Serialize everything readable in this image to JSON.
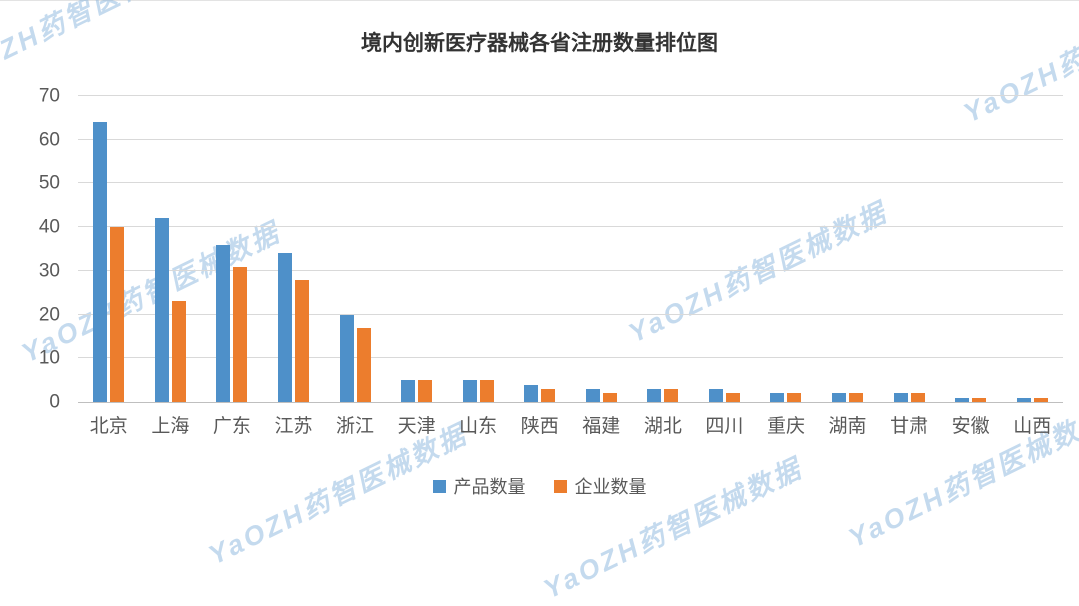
{
  "watermark": {
    "text": "YaOZH药智医械数据"
  },
  "chart_data": {
    "type": "bar",
    "title": "境内创新医疗器械各省注册数量排位图",
    "categories": [
      "北京",
      "上海",
      "广东",
      "江苏",
      "浙江",
      "天津",
      "山东",
      "陕西",
      "福建",
      "湖北",
      "四川",
      "重庆",
      "湖南",
      "甘肃",
      "安徽",
      "山西"
    ],
    "series": [
      {
        "name": "产品数量",
        "color": "#4E90C9",
        "values": [
          64,
          42,
          36,
          34,
          20,
          5,
          5,
          4,
          3,
          3,
          3,
          2,
          2,
          2,
          1,
          1
        ]
      },
      {
        "name": "企业数量",
        "color": "#EC7D2D",
        "values": [
          40,
          23,
          31,
          28,
          17,
          5,
          5,
          3,
          2,
          3,
          2,
          2,
          2,
          2,
          1,
          1
        ]
      }
    ],
    "xlabel": "",
    "ylabel": "",
    "ylim": [
      0,
      70
    ],
    "yticks": [
      0,
      10,
      20,
      30,
      40,
      50,
      60,
      70
    ],
    "grid": "horizontal",
    "legend_position": "bottom"
  }
}
